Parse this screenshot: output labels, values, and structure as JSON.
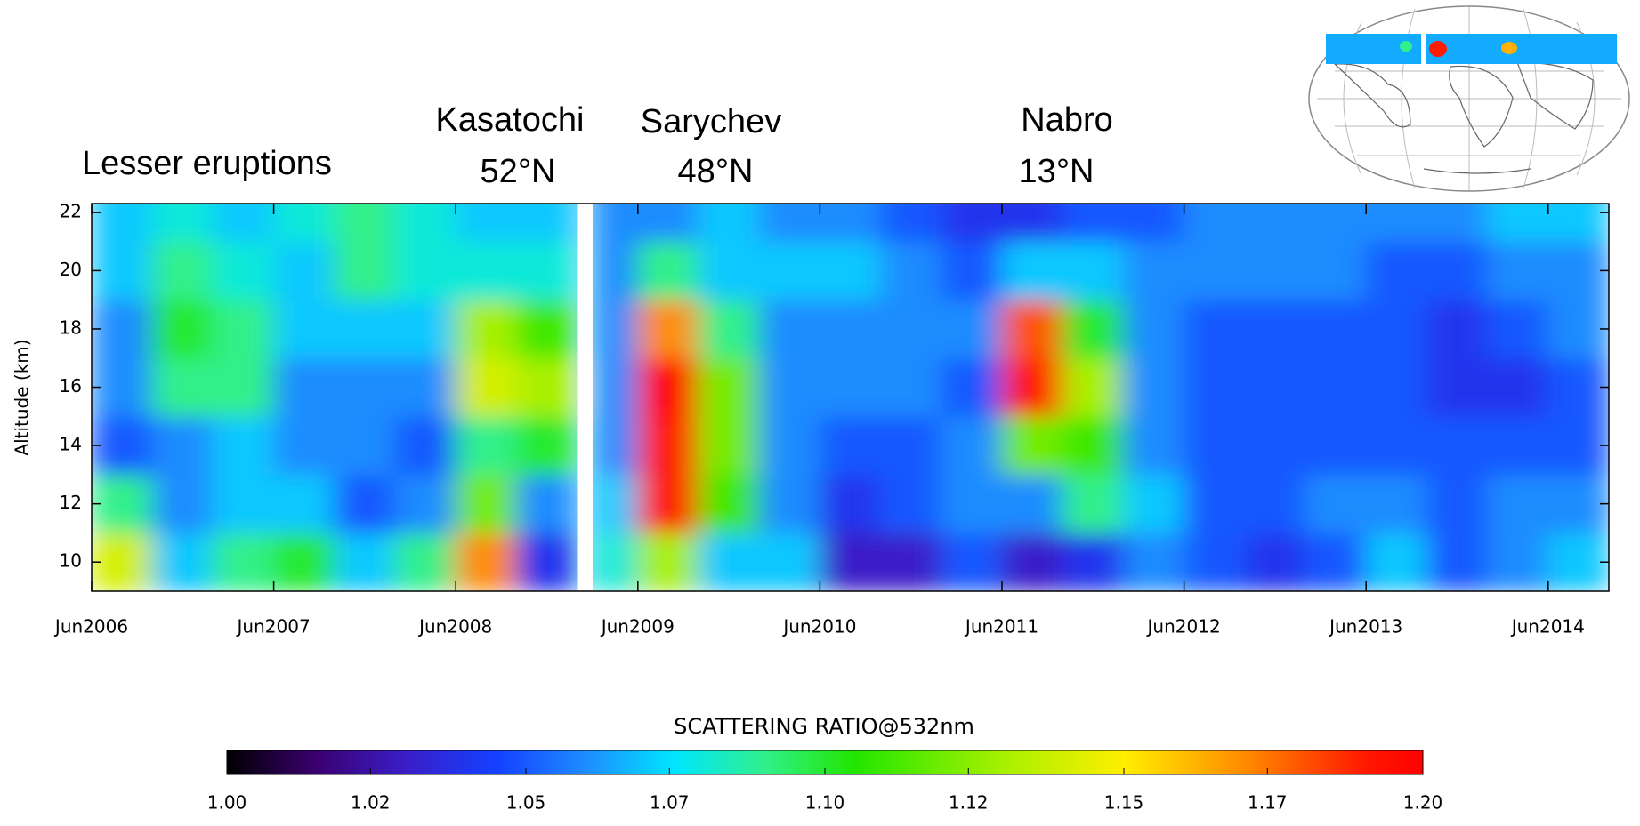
{
  "chart_data": {
    "type": "heatmap",
    "y_label": "Altitude (km)",
    "colorbar_title": "SCATTERING RATIO@532nm",
    "annotations": [
      "Lesser eruptions",
      "Kasatochi",
      "52°N",
      "Sarychev",
      "48°N",
      "Nabro",
      "13°N"
    ],
    "x_edges": [
      "2006-06",
      "2006-10",
      "2007-02",
      "2007-06",
      "2007-10",
      "2008-02",
      "2008-06",
      "2008-10",
      "2009-02",
      "2009-03",
      "2009-06",
      "2009-10",
      "2010-02",
      "2010-06",
      "2010-10",
      "2011-02",
      "2011-06",
      "2011-10",
      "2012-02",
      "2012-06",
      "2012-10",
      "2013-02",
      "2013-06",
      "2013-10",
      "2014-02",
      "2014-06",
      "2014-10"
    ],
    "y": [
      10,
      12,
      14,
      16,
      18,
      20,
      22
    ],
    "values": [
      [
        1.14,
        1.09,
        1.05,
        1.06,
        1.06,
        1.07,
        1.07
      ],
      [
        1.07,
        1.06,
        1.06,
        1.09,
        1.1,
        1.09,
        1.08
      ],
      [
        1.09,
        1.07,
        1.07,
        1.09,
        1.09,
        1.08,
        1.07
      ],
      [
        1.1,
        1.07,
        1.06,
        1.06,
        1.07,
        1.07,
        1.08
      ],
      [
        1.07,
        1.05,
        1.06,
        1.06,
        1.07,
        1.09,
        1.09
      ],
      [
        1.09,
        1.06,
        1.05,
        1.06,
        1.07,
        1.08,
        1.08
      ],
      [
        1.17,
        1.12,
        1.09,
        1.14,
        1.13,
        1.08,
        1.07
      ],
      [
        1.04,
        1.06,
        1.1,
        1.13,
        1.11,
        1.08,
        1.07
      ],
      [
        null,
        null,
        null,
        null,
        null,
        null,
        null
      ],
      [
        1.08,
        1.07,
        1.06,
        1.06,
        1.06,
        1.06,
        1.06
      ],
      [
        1.13,
        1.19,
        1.19,
        1.2,
        1.17,
        1.09,
        1.06
      ],
      [
        1.07,
        1.11,
        1.12,
        1.12,
        1.09,
        1.07,
        1.07
      ],
      [
        1.07,
        1.06,
        1.06,
        1.06,
        1.06,
        1.07,
        1.06
      ],
      [
        1.03,
        1.04,
        1.05,
        1.06,
        1.06,
        1.07,
        1.06
      ],
      [
        1.03,
        1.05,
        1.05,
        1.06,
        1.06,
        1.06,
        1.05
      ],
      [
        1.05,
        1.06,
        1.06,
        1.05,
        1.06,
        1.05,
        1.04
      ],
      [
        1.03,
        1.06,
        1.12,
        1.19,
        1.18,
        1.07,
        1.04
      ],
      [
        1.04,
        1.09,
        1.11,
        1.13,
        1.1,
        1.07,
        1.05
      ],
      [
        1.06,
        1.07,
        1.06,
        1.06,
        1.06,
        1.06,
        1.05
      ],
      [
        1.05,
        1.05,
        1.05,
        1.05,
        1.05,
        1.06,
        1.06
      ],
      [
        1.04,
        1.05,
        1.05,
        1.05,
        1.05,
        1.06,
        1.06
      ],
      [
        1.05,
        1.06,
        1.05,
        1.05,
        1.05,
        1.06,
        1.06
      ],
      [
        1.07,
        1.06,
        1.05,
        1.05,
        1.05,
        1.05,
        1.06
      ],
      [
        1.05,
        1.05,
        1.05,
        1.04,
        1.04,
        1.05,
        1.06
      ],
      [
        1.06,
        1.06,
        1.05,
        1.04,
        1.05,
        1.06,
        1.07
      ],
      [
        1.07,
        1.06,
        1.05,
        1.05,
        1.06,
        1.06,
        1.07
      ]
    ],
    "xlim": [
      "2006-06",
      "2014-10"
    ],
    "xticks": [
      {
        "value": "2006-06",
        "label": "Jun2006"
      },
      {
        "value": "2007-06",
        "label": "Jun2007"
      },
      {
        "value": "2008-06",
        "label": "Jun2008"
      },
      {
        "value": "2009-06",
        "label": "Jun2009"
      },
      {
        "value": "2010-06",
        "label": "Jun2010"
      },
      {
        "value": "2011-06",
        "label": "Jun2011"
      },
      {
        "value": "2012-06",
        "label": "Jun2012"
      },
      {
        "value": "2013-06",
        "label": "Jun2013"
      },
      {
        "value": "2014-06",
        "label": "Jun2014"
      }
    ],
    "ylim": [
      9,
      22.3
    ],
    "yticks": [
      10,
      12,
      14,
      16,
      18,
      20,
      22
    ],
    "clim": [
      1.0,
      1.2
    ],
    "cticks": [
      {
        "value": 1.0,
        "label": "1.00"
      },
      {
        "value": 1.024,
        "label": "1.02"
      },
      {
        "value": 1.05,
        "label": "1.05"
      },
      {
        "value": 1.074,
        "label": "1.07"
      },
      {
        "value": 1.1,
        "label": "1.10"
      },
      {
        "value": 1.124,
        "label": "1.12"
      },
      {
        "value": 1.15,
        "label": "1.15"
      },
      {
        "value": 1.174,
        "label": "1.17"
      },
      {
        "value": 1.2,
        "label": "1.20"
      }
    ],
    "colormap": [
      {
        "value": 1.0,
        "color": "#000000"
      },
      {
        "value": 1.015,
        "color": "#3a0070"
      },
      {
        "value": 1.03,
        "color": "#3a1ec8"
      },
      {
        "value": 1.045,
        "color": "#1440ff"
      },
      {
        "value": 1.06,
        "color": "#1e8cff"
      },
      {
        "value": 1.075,
        "color": "#00e6ff"
      },
      {
        "value": 1.09,
        "color": "#30f08a"
      },
      {
        "value": 1.105,
        "color": "#22e600"
      },
      {
        "value": 1.13,
        "color": "#a8f000"
      },
      {
        "value": 1.15,
        "color": "#ffee00"
      },
      {
        "value": 1.17,
        "color": "#ff8c00"
      },
      {
        "value": 1.19,
        "color": "#ff1a00"
      },
      {
        "value": 1.2,
        "color": "#ff0000"
      }
    ]
  }
}
